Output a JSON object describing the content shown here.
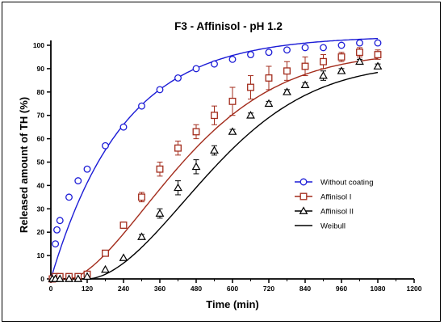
{
  "chart_data": {
    "type": "scatter",
    "title": "F3 - Affinisol - pH 1.2",
    "xlabel": "Time (min)",
    "ylabel": "Released amount of TH (%)",
    "xlim": [
      0,
      1200
    ],
    "ylim": [
      0,
      100
    ],
    "xticks": [
      0,
      120,
      240,
      360,
      480,
      600,
      720,
      840,
      960,
      1080,
      1200
    ],
    "yticks": [
      0,
      10,
      20,
      30,
      40,
      50,
      60,
      70,
      80,
      90,
      100
    ],
    "legend_position": "right-middle",
    "grid": false,
    "series": [
      {
        "name": "Without coating",
        "marker": "circle",
        "color": "#1c1cd6",
        "x": [
          5,
          15,
          20,
          30,
          60,
          90,
          120,
          180,
          240,
          300,
          360,
          420,
          480,
          540,
          600,
          660,
          720,
          780,
          840,
          900,
          960,
          1020,
          1080
        ],
        "y": [
          0,
          15,
          21,
          25,
          35,
          42,
          47,
          57,
          65,
          74,
          81,
          86,
          90,
          92,
          94,
          96,
          97,
          98,
          99,
          99,
          100,
          101,
          101
        ],
        "fit": {
          "model": "first-order",
          "ymax": 104,
          "k": 0.0042
        }
      },
      {
        "name": "Affinisol I",
        "marker": "square",
        "color": "#a32c1c",
        "x": [
          5,
          15,
          30,
          60,
          90,
          120,
          180,
          240,
          300,
          360,
          420,
          480,
          540,
          600,
          660,
          720,
          780,
          840,
          900,
          960,
          1020,
          1080
        ],
        "y": [
          0,
          1,
          1,
          1,
          1,
          2,
          11,
          23,
          35,
          47,
          56,
          63,
          70,
          76,
          82,
          86,
          89,
          91,
          93,
          95,
          97,
          96
        ],
        "err": [
          0,
          0,
          0,
          0,
          0,
          0,
          1,
          1,
          2,
          3,
          3,
          3,
          4,
          6,
          5,
          5,
          4,
          4,
          3,
          2,
          2,
          2
        ],
        "fit": {
          "model": "weibull",
          "ymax": 97,
          "t0": 60,
          "scale": 460,
          "shape": 1.6
        }
      },
      {
        "name": "Affinisol II",
        "marker": "triangle",
        "color": "#000000",
        "x": [
          5,
          15,
          30,
          60,
          90,
          120,
          180,
          240,
          300,
          360,
          420,
          480,
          540,
          600,
          660,
          720,
          780,
          840,
          900,
          960,
          1020,
          1080
        ],
        "y": [
          0,
          0,
          0,
          0,
          0,
          1,
          4,
          9,
          18,
          28,
          39,
          48,
          55,
          63,
          70,
          75,
          80,
          83,
          87,
          89,
          93,
          91
        ],
        "err": [
          0,
          0,
          0,
          0,
          0,
          0,
          0,
          0,
          1,
          2,
          3,
          3,
          2,
          1,
          1,
          1,
          1,
          1,
          2,
          1,
          1,
          1
        ],
        "fit": {
          "model": "weibull",
          "ymax": 92,
          "t0": 120,
          "scale": 500,
          "shape": 1.8
        }
      },
      {
        "name": "Weibull",
        "marker": "line",
        "color": "#000000"
      }
    ]
  }
}
